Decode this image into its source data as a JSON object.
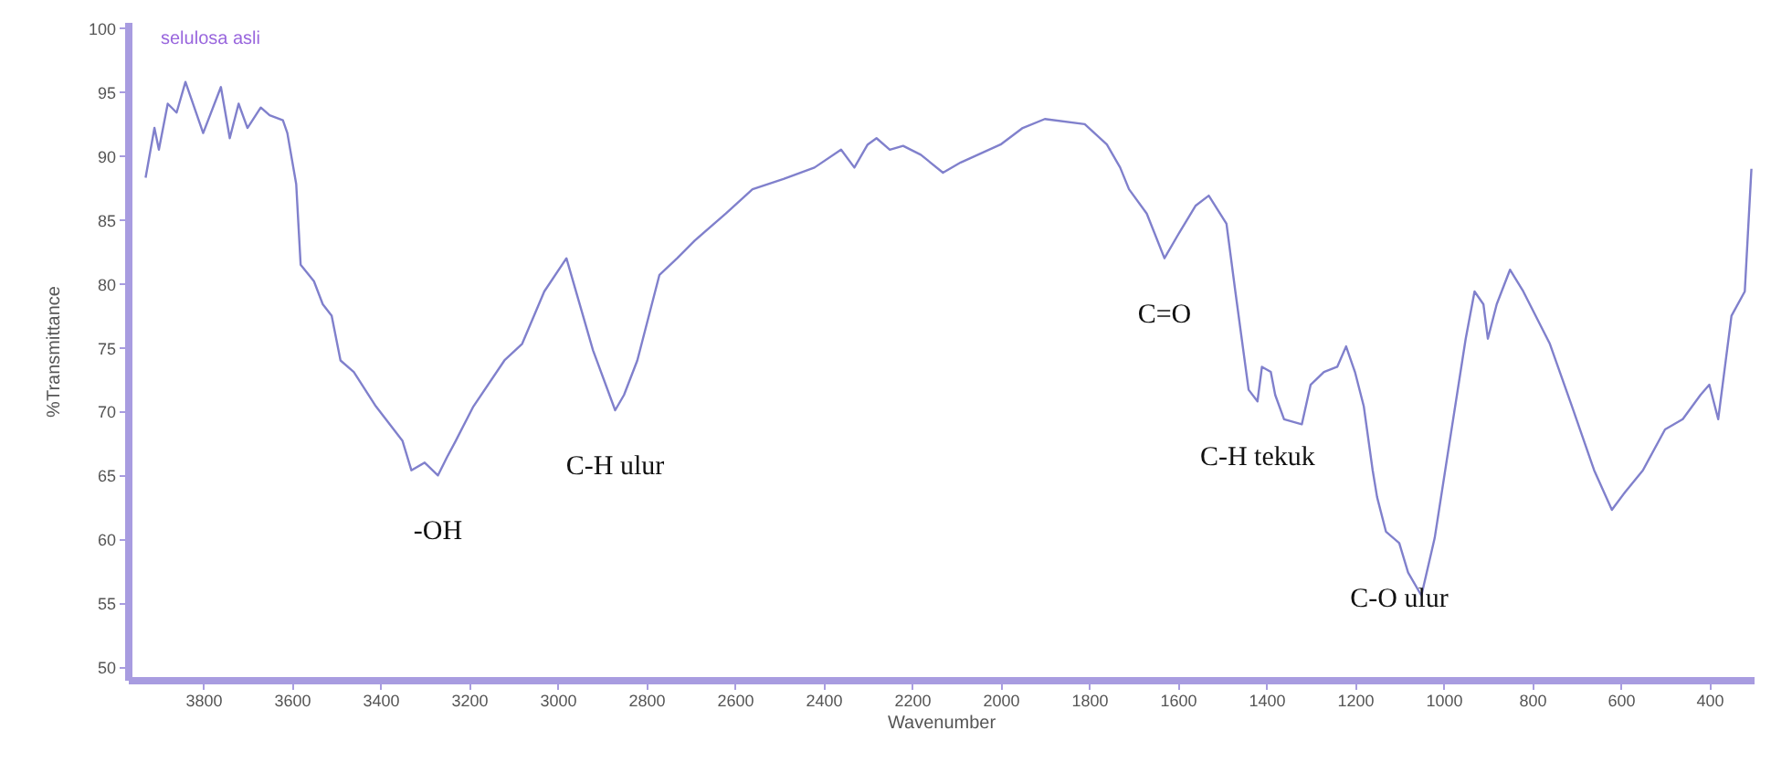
{
  "chart_data": {
    "type": "line",
    "xlabel": "Wavenumber",
    "ylabel": "%Transmittance",
    "xlim": [
      3970,
      300
    ],
    "ylim": [
      49,
      100.5
    ],
    "xticks": [
      3800,
      3600,
      3400,
      3200,
      3000,
      2800,
      2600,
      2400,
      2200,
      2000,
      1800,
      1600,
      1400,
      1200,
      1000,
      800,
      600,
      400
    ],
    "yticks": [
      50,
      55,
      60,
      65,
      70,
      75,
      80,
      85,
      90,
      95,
      100
    ],
    "grid": false,
    "marker": "none",
    "line_style": "solid",
    "annotations": [
      "selulosa asli",
      {
        "text": "-OH",
        "x": 3270,
        "y": 65
      },
      {
        "text": "C-H ulur",
        "x": 2870,
        "y": 70.1
      },
      {
        "text": "C=O",
        "x": 1630,
        "y": 82
      },
      {
        "text": "C-H tekuk",
        "x": 1420,
        "y": 70.8
      },
      {
        "text": "C-O ulur",
        "x": 1100,
        "y": 59.7
      }
    ],
    "series": [
      {
        "color": "#8080cc",
        "x": [
          3930,
          3910,
          3900,
          3880,
          3860,
          3840,
          3800,
          3760,
          3740,
          3720,
          3700,
          3670,
          3650,
          3620,
          3610,
          3590,
          3580,
          3550,
          3530,
          3510,
          3490,
          3460,
          3410,
          3350,
          3330,
          3300,
          3270,
          3250,
          3230,
          3190,
          3120,
          3080,
          3030,
          2980,
          2920,
          2870,
          2850,
          2820,
          2770,
          2730,
          2690,
          2620,
          2560,
          2490,
          2420,
          2360,
          2330,
          2300,
          2280,
          2250,
          2220,
          2180,
          2130,
          2090,
          2000,
          1950,
          1900,
          1810,
          1760,
          1730,
          1710,
          1670,
          1630,
          1600,
          1560,
          1530,
          1490,
          1470,
          1440,
          1420,
          1410,
          1390,
          1380,
          1360,
          1320,
          1300,
          1270,
          1240,
          1220,
          1200,
          1180,
          1160,
          1150,
          1130,
          1100,
          1080,
          1050,
          1020,
          990,
          950,
          930,
          910,
          900,
          880,
          850,
          820,
          760,
          710,
          660,
          620,
          590,
          550,
          500,
          460,
          420,
          400,
          380,
          350,
          320,
          305
        ],
        "values": [
          88.3,
          92.2,
          90.5,
          94.1,
          93.4,
          95.8,
          91.8,
          95.4,
          91.4,
          94.1,
          92.2,
          93.8,
          93.2,
          92.8,
          91.8,
          87.8,
          81.5,
          80.2,
          78.4,
          77.5,
          74,
          73.1,
          70.4,
          67.7,
          65.4,
          66,
          65,
          66.4,
          67.7,
          70.4,
          74,
          75.3,
          79.4,
          82,
          74.8,
          70.1,
          71.3,
          74,
          80.7,
          82,
          83.4,
          85.5,
          87.4,
          88.2,
          89.1,
          90.5,
          89.1,
          90.9,
          91.4,
          90.5,
          90.8,
          90.1,
          88.7,
          89.5,
          90.9,
          92.2,
          92.9,
          92.5,
          90.9,
          89.1,
          87.4,
          85.5,
          82,
          83.8,
          86.1,
          86.9,
          84.7,
          79.4,
          71.7,
          70.8,
          73.5,
          73.1,
          71.3,
          69.4,
          69,
          72.1,
          73.1,
          73.5,
          75.1,
          73.1,
          70.4,
          65.4,
          63.3,
          60.6,
          59.7,
          57.4,
          55.6,
          60.1,
          66.8,
          75.7,
          79.4,
          78.4,
          75.7,
          78.4,
          81.1,
          79.4,
          75.3,
          70.4,
          65.4,
          62.3,
          63.7,
          65.4,
          68.6,
          69.4,
          71.3,
          72.1,
          69.4,
          77.5,
          79.4,
          89
        ]
      }
    ]
  }
}
